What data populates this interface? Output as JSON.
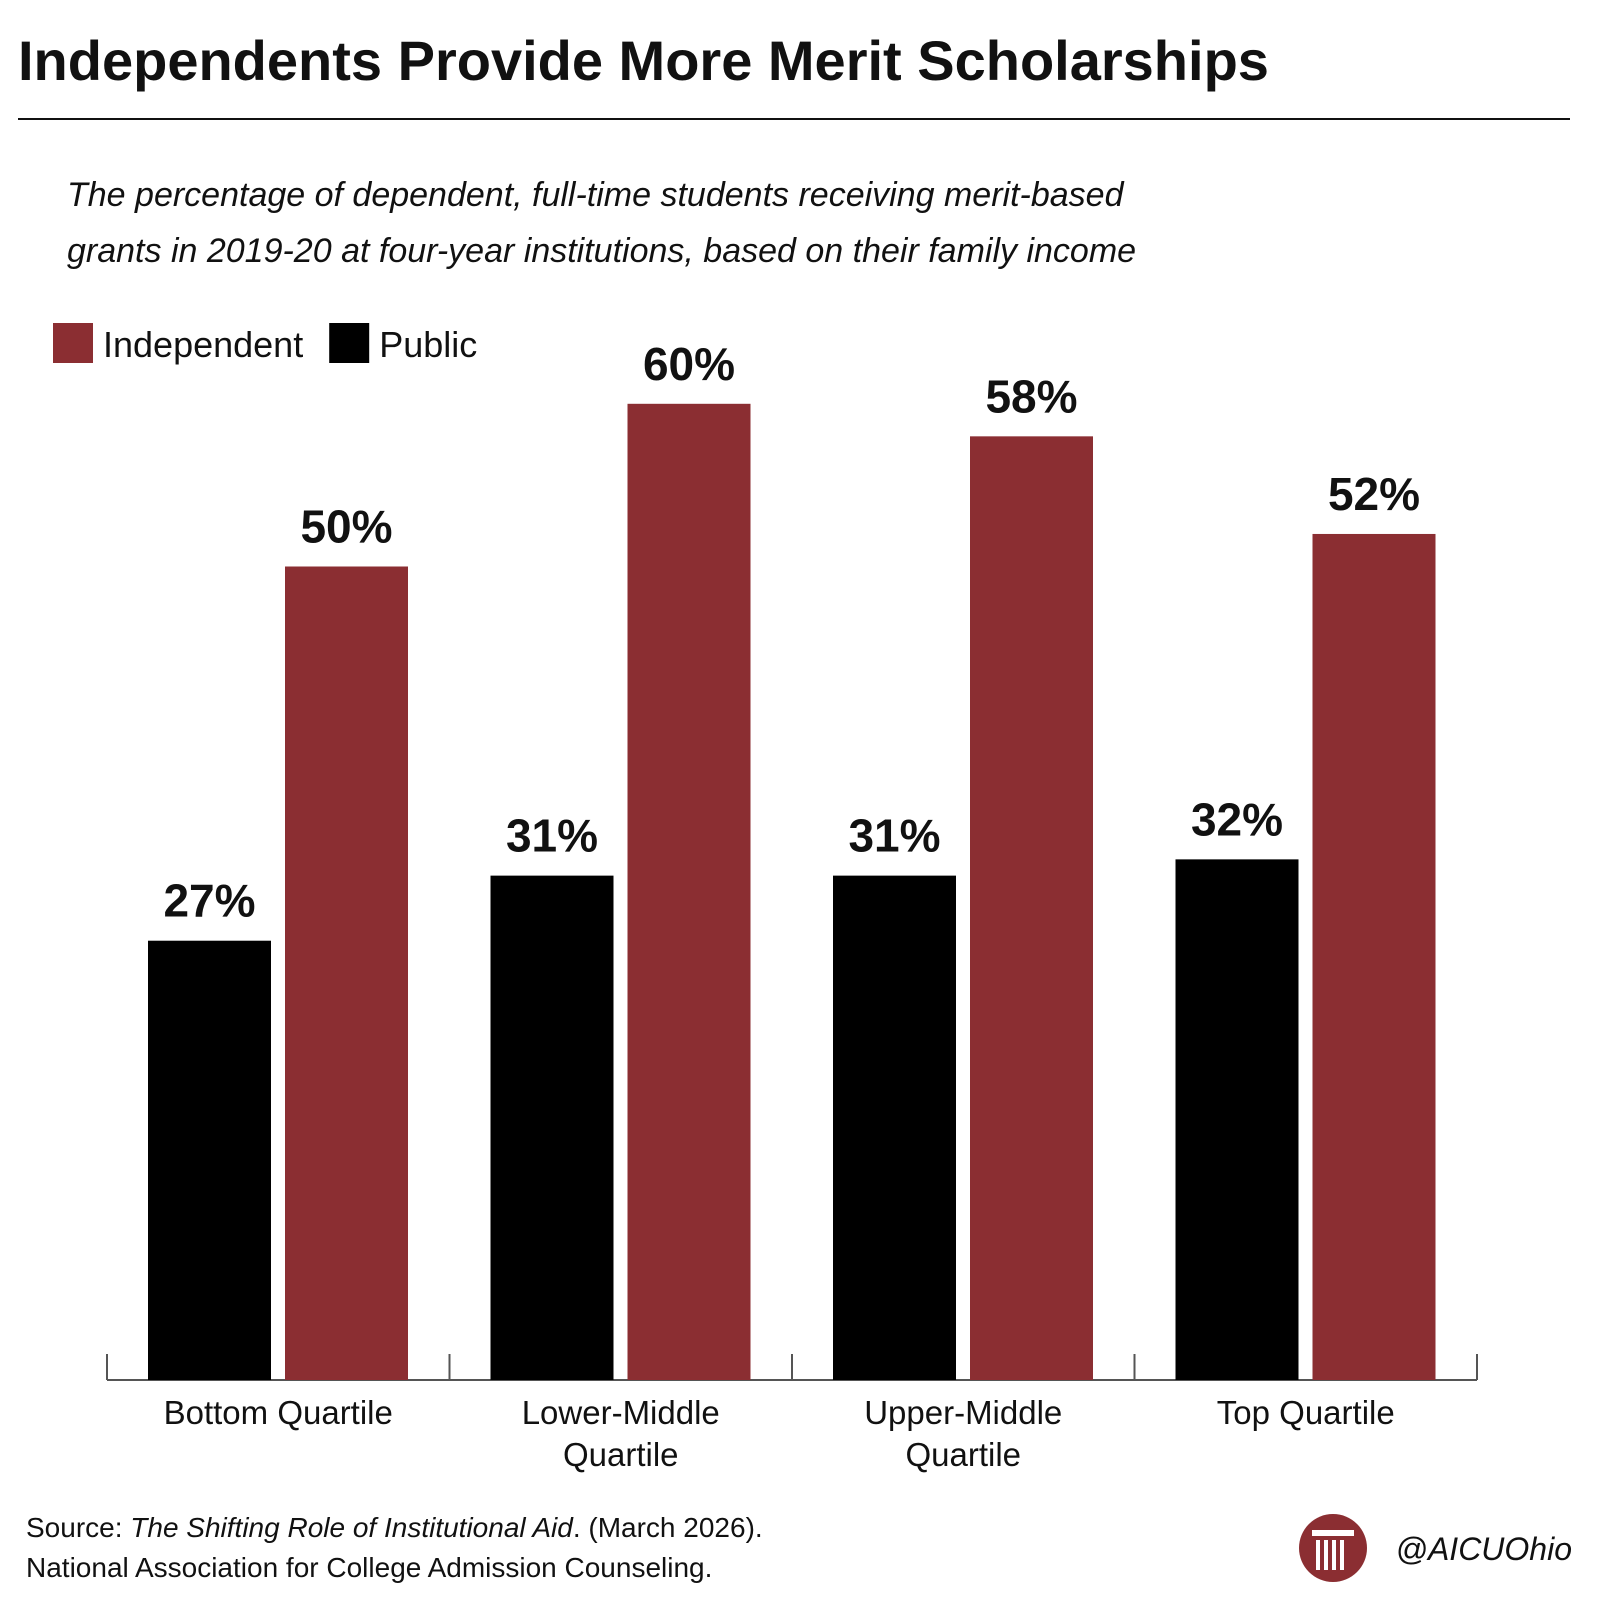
{
  "chart_data": {
    "type": "bar",
    "title": "Independents Provide More Merit Scholarships",
    "subtitle": [
      "The percentage of dependent, full-time students receiving merit-based",
      "grants in 2019-20 at four-year institutions, based on their family income"
    ],
    "categories": [
      "Bottom Quartile",
      "Lower-Middle Quartile",
      "Upper-Middle Quartile",
      "Top Quartile"
    ],
    "series": [
      {
        "name": "Independent",
        "color": "#8b2e32",
        "values": [
          50,
          60,
          58,
          52
        ],
        "value_labels": [
          "50%",
          "60%",
          "58%",
          "52%"
        ]
      },
      {
        "name": "Public",
        "color": "#000000",
        "values": [
          27,
          31,
          31,
          32
        ],
        "value_labels": [
          "27%",
          "31%",
          "31%",
          "32%"
        ]
      }
    ],
    "legend": "top-left",
    "source": {
      "label": "Source:",
      "title": "The Shifting Role of Institutional Aid",
      "rest": ". (March 2026).",
      "line2": "National Association for College Admission Counseling."
    },
    "handle": "@AICUOhio"
  }
}
